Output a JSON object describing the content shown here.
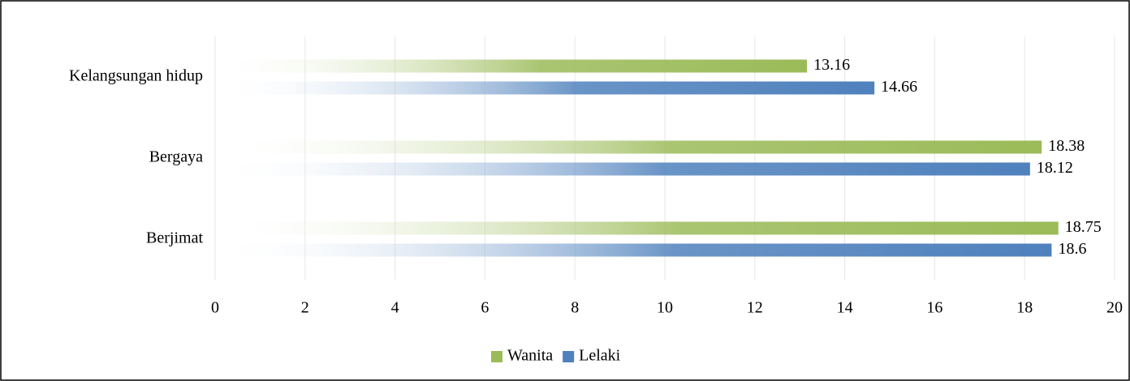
{
  "chart_data": {
    "type": "bar",
    "orientation": "horizontal",
    "categories": [
      "Kelangsungan hidup",
      "Bergaya",
      "Berjimat"
    ],
    "series": [
      {
        "name": "Wanita",
        "color": "#9bbb59",
        "values": [
          13.16,
          18.38,
          18.75
        ]
      },
      {
        "name": "Lelaki",
        "color": "#4f81bd",
        "values": [
          14.66,
          18.12,
          18.6
        ]
      }
    ],
    "xlim": [
      0,
      20
    ],
    "xticks": [
      0,
      2,
      4,
      6,
      8,
      10,
      12,
      14,
      16,
      18,
      20
    ],
    "grid": true,
    "legend": "bottom"
  }
}
